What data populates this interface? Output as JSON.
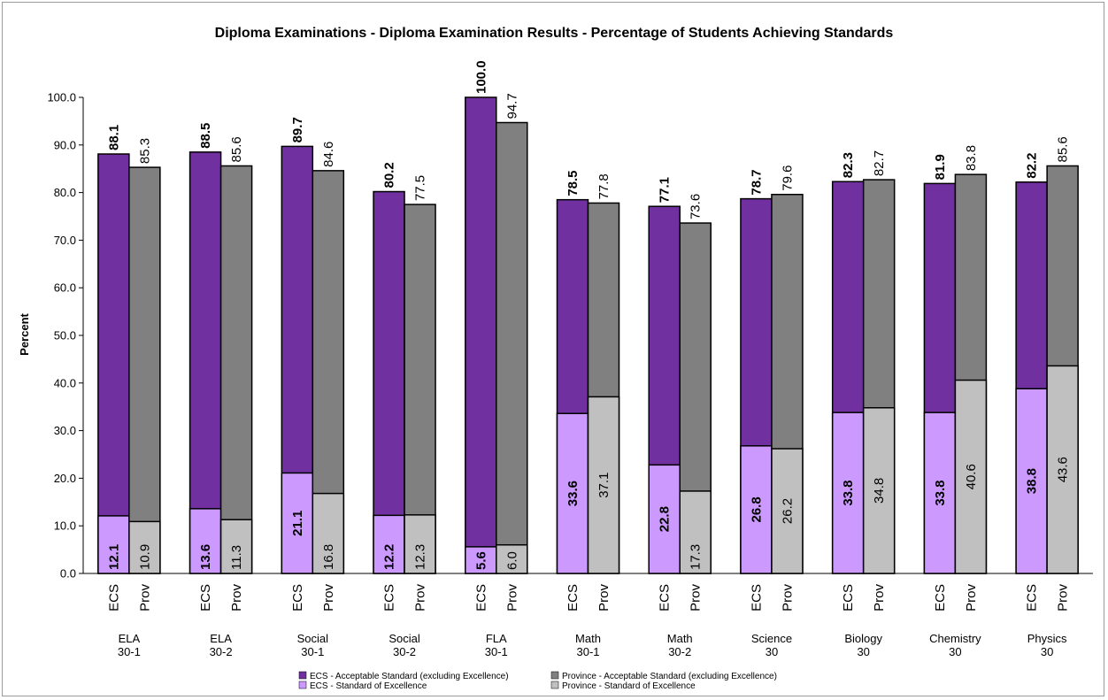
{
  "chart_data": {
    "type": "bar",
    "title": "Diploma Examinations - Diploma Examination Results - Percentage of Students Achieving Standards",
    "ylabel": "Percent",
    "ylim": [
      0,
      100
    ],
    "yticks": [
      "0.0",
      "10.0",
      "20.0",
      "30.0",
      "40.0",
      "50.0",
      "60.0",
      "70.0",
      "80.0",
      "90.0",
      "100.0"
    ],
    "sub_labels": [
      "ECS",
      "Prov"
    ],
    "categories": [
      [
        "ELA",
        "30-1"
      ],
      [
        "ELA",
        "30-2"
      ],
      [
        "Social",
        "30-1"
      ],
      [
        "Social",
        "30-2"
      ],
      [
        "FLA",
        "30-1"
      ],
      [
        "Math",
        "30-1"
      ],
      [
        "Math",
        "30-2"
      ],
      [
        "Science",
        "30"
      ],
      [
        "Biology",
        "30"
      ],
      [
        "Chemistry",
        "30"
      ],
      [
        "Physics",
        "30"
      ]
    ],
    "series": [
      {
        "name": "ECS - Acceptable Standard (excluding Excellence)",
        "group": "ECS",
        "values": [
          88.1,
          88.5,
          89.7,
          80.2,
          100.0,
          78.5,
          77.1,
          78.7,
          82.3,
          81.9,
          82.2
        ]
      },
      {
        "name": "ECS - Standard of Excellence",
        "group": "ECS",
        "values": [
          12.1,
          13.6,
          21.1,
          12.2,
          5.6,
          33.6,
          22.8,
          26.8,
          33.8,
          33.8,
          38.8
        ]
      },
      {
        "name": "Province - Acceptable Standard (excluding Excellence)",
        "group": "Prov",
        "values": [
          85.3,
          85.6,
          84.6,
          77.5,
          94.7,
          77.8,
          73.6,
          79.6,
          82.7,
          83.8,
          85.6
        ]
      },
      {
        "name": "Province - Standard of Excellence",
        "group": "Prov",
        "values": [
          10.9,
          11.3,
          16.8,
          12.3,
          6.0,
          37.1,
          17.3,
          26.2,
          34.8,
          40.6,
          43.6
        ]
      }
    ],
    "value_labels": {
      "ecs_acceptable": [
        "88.1",
        "88.5",
        "89.7",
        "80.2",
        "100.0",
        "78.5",
        "77.1",
        "78.7",
        "82.3",
        "81.9",
        "82.2"
      ],
      "ecs_excellence": [
        "12.1",
        "13.6",
        "21.1",
        "12.2",
        "5.6",
        "33.6",
        "22.8",
        "26.8",
        "33.8",
        "33.8",
        "38.8"
      ],
      "prov_acceptable": [
        "85.3",
        "85.6",
        "84.6",
        "77.5",
        "94.7",
        "77.8",
        "73.6",
        "79.6",
        "82.7",
        "83.8",
        "85.6"
      ],
      "prov_excellence": [
        "10.9",
        "11.3",
        "16.8",
        "12.3",
        "6.0",
        "37.1",
        "17.3",
        "26.2",
        "34.8",
        "40.6",
        "43.6"
      ]
    },
    "colors": {
      "ecs_acceptable": "#7030a0",
      "ecs_excellence": "#cc99ff",
      "prov_acceptable": "#808080",
      "prov_excellence": "#c0c0c0"
    },
    "legend": {
      "placement": "bottom-center",
      "entries": [
        {
          "label": "ECS - Acceptable Standard (excluding Excellence)",
          "color": "#7030a0"
        },
        {
          "label": "Province - Acceptable Standard (excluding Excellence)",
          "color": "#808080"
        },
        {
          "label": "ECS - Standard of Excellence",
          "color": "#cc99ff"
        },
        {
          "label": "Province - Standard of Excellence",
          "color": "#c0c0c0"
        }
      ]
    },
    "grid": false
  }
}
